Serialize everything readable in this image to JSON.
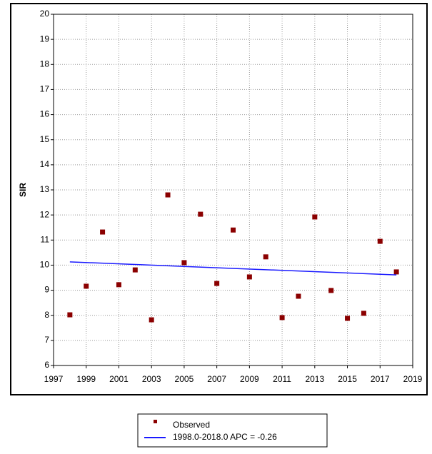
{
  "chart_data": {
    "type": "scatter",
    "y_label": "SIR",
    "xlim": [
      1997,
      2019
    ],
    "xticks": [
      1997,
      1999,
      2001,
      2003,
      2005,
      2007,
      2009,
      2011,
      2013,
      2015,
      2017,
      2019
    ],
    "ylim": [
      6,
      20
    ],
    "yticks": [
      6,
      7,
      8,
      9,
      10,
      11,
      12,
      13,
      14,
      15,
      16,
      17,
      18,
      19,
      20
    ],
    "grid": true,
    "series": [
      {
        "name": "Observed",
        "mode": "markers",
        "color": "#8b0000",
        "x": [
          1998,
          1999,
          2000,
          2001,
          2002,
          2003,
          2004,
          2005,
          2006,
          2007,
          2008,
          2009,
          2010,
          2011,
          2012,
          2013,
          2014,
          2015,
          2016,
          2017,
          2018
        ],
        "values": [
          8.02,
          9.16,
          11.32,
          9.22,
          9.81,
          7.82,
          12.8,
          10.1,
          12.03,
          9.27,
          11.4,
          9.53,
          10.33,
          7.91,
          8.76,
          11.92,
          8.99,
          7.88,
          8.08,
          10.95,
          9.73
        ]
      },
      {
        "name": "1998.0-2018.0 APC  = -0.26",
        "mode": "line",
        "color": "#1a1aff",
        "x": [
          1998,
          2018
        ],
        "values": [
          10.13,
          9.61
        ]
      }
    ]
  }
}
